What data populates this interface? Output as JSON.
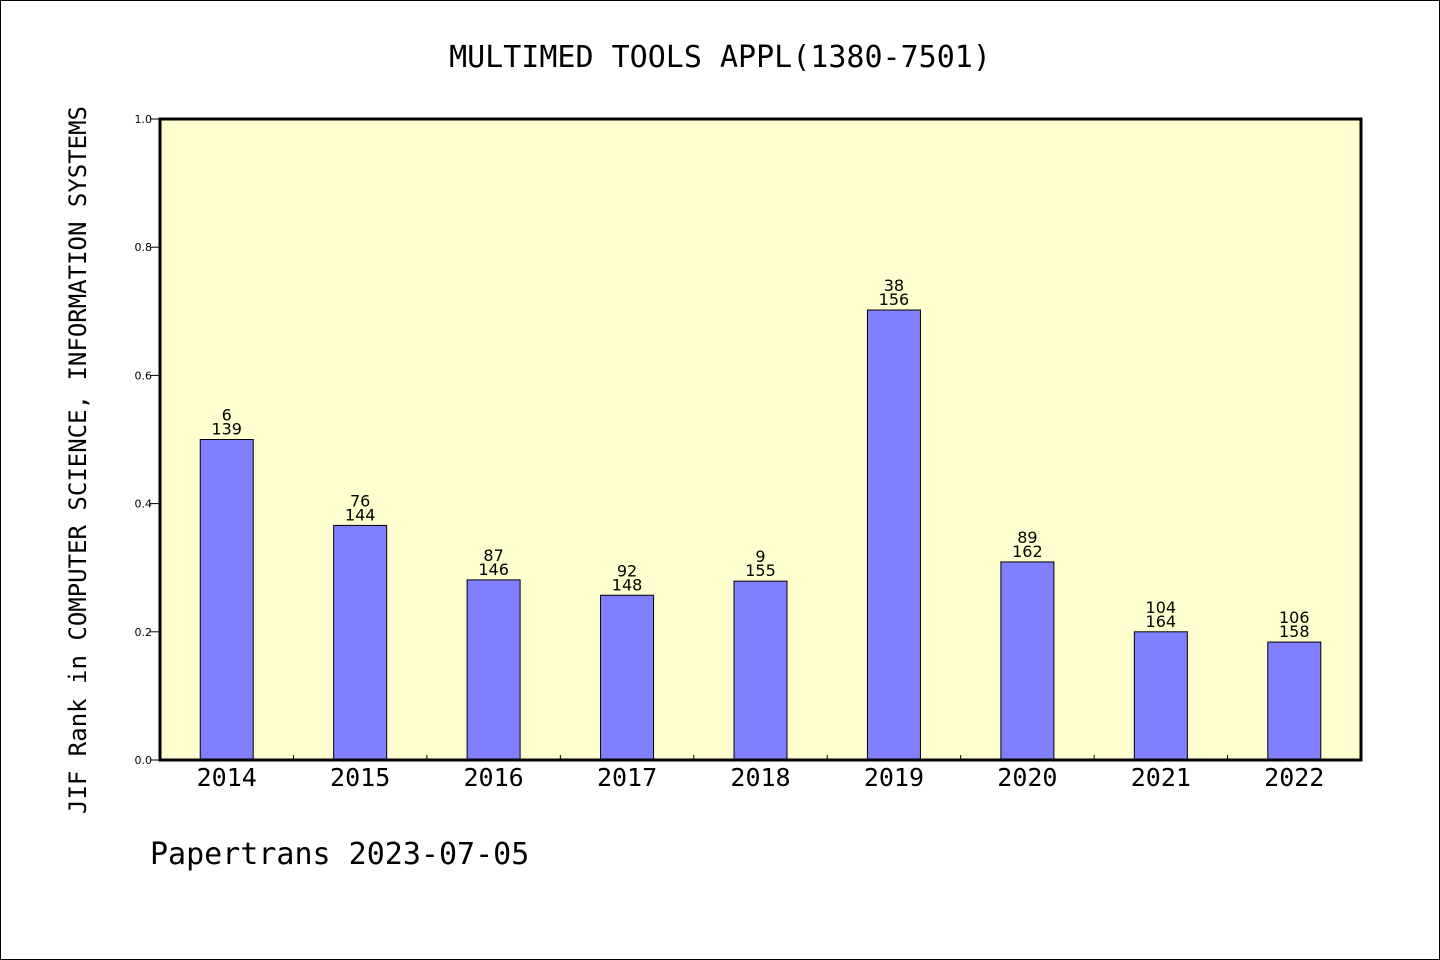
{
  "chart_data": {
    "type": "bar",
    "title": "MULTIMED TOOLS APPL(1380-7501)",
    "xlabel": "",
    "ylabel": "JIF Rank in COMPUTER SCIENCE, INFORMATION SYSTEMS",
    "categories": [
      "2014",
      "2015",
      "2016",
      "2017",
      "2018",
      "2019",
      "2020",
      "2021",
      "2022"
    ],
    "values": [
      0.5,
      0.366,
      0.281,
      0.257,
      0.279,
      0.702,
      0.309,
      0.2,
      0.184
    ],
    "rank_labels": [
      "6",
      "76",
      "87",
      "92",
      "9",
      "38",
      "89",
      "104",
      "106"
    ],
    "total_labels": [
      "139",
      "144",
      "146",
      "148",
      "155",
      "156",
      "162",
      "164",
      "158"
    ],
    "ylim": [
      0,
      1.0
    ],
    "yticks": [
      "0.0",
      "0.2",
      "0.4",
      "0.6",
      "0.8",
      "1.0"
    ],
    "grid": false,
    "legend": "none",
    "colors": {
      "bar": "#8080ff",
      "plot_background": "#ffffd0",
      "axis": "#000000"
    }
  },
  "footer": {
    "text": "Papertrans 2023-07-05"
  }
}
